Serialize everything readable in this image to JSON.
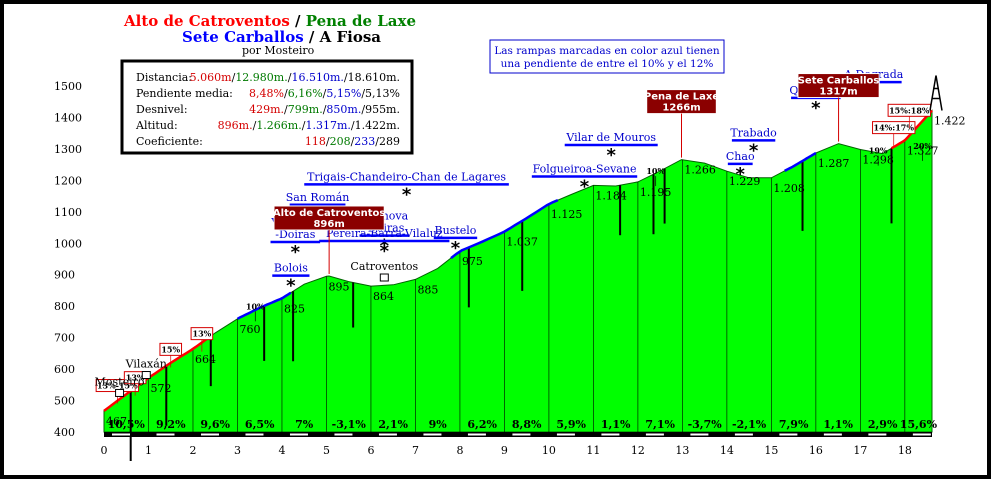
{
  "title": {
    "line1_red": "Alto de Catroventos",
    "sep1": " / ",
    "line1_green": "Pena de Laxe",
    "line2_blue": "Sete Carballos",
    "sep2": " / ",
    "line2_black": "A Fiosa",
    "author": "por Mosteiro"
  },
  "stats": {
    "rows": [
      {
        "label": "Distancia:",
        "values": [
          {
            "t": "5.060m",
            "c": "#d40000"
          },
          {
            "t": "/",
            "c": "#000"
          },
          {
            "t": "12.980m.",
            "c": "#007a00"
          },
          {
            "t": "/",
            "c": "#000"
          },
          {
            "t": "16.510m.",
            "c": "#0000cc"
          },
          {
            "t": "/18.610m.",
            "c": "#000"
          }
        ]
      },
      {
        "label": "Pendiente media:",
        "values": [
          {
            "t": "8,48%",
            "c": "#d40000"
          },
          {
            "t": "/",
            "c": "#000"
          },
          {
            "t": "6,16%",
            "c": "#007a00"
          },
          {
            "t": "/",
            "c": "#000"
          },
          {
            "t": "5,15%",
            "c": "#0000cc"
          },
          {
            "t": "/5,13%",
            "c": "#000"
          }
        ]
      },
      {
        "label": "Desnivel:",
        "values": [
          {
            "t": "429m.",
            "c": "#d40000"
          },
          {
            "t": "/",
            "c": "#000"
          },
          {
            "t": "799m.",
            "c": "#007a00"
          },
          {
            "t": "/",
            "c": "#000"
          },
          {
            "t": "850m.",
            "c": "#0000cc"
          },
          {
            "t": "/955m.",
            "c": "#000"
          }
        ]
      },
      {
        "label": "Altitud:",
        "values": [
          {
            "t": "896m.",
            "c": "#d40000"
          },
          {
            "t": "/",
            "c": "#000"
          },
          {
            "t": "1.266m.",
            "c": "#007a00"
          },
          {
            "t": "/",
            "c": "#000"
          },
          {
            "t": "1.317m.",
            "c": "#0000cc"
          },
          {
            "t": "/1.422m.",
            "c": "#000"
          }
        ]
      },
      {
        "label": "Coeficiente:",
        "values": [
          {
            "t": "118",
            "c": "#d40000"
          },
          {
            "t": "/",
            "c": "#000"
          },
          {
            "t": "208",
            "c": "#007a00"
          },
          {
            "t": "/",
            "c": "#000"
          },
          {
            "t": "233",
            "c": "#0000cc"
          },
          {
            "t": "/289",
            "c": "#000"
          }
        ]
      }
    ]
  },
  "note": {
    "line1": "Las rampas marcadas en color azul tienen",
    "line2": "una pendiente de entre el 10% y el 12%"
  },
  "colors": {
    "fill": "#00ff00",
    "red_ramp": "#ff0000",
    "blue_ramp": "#0000ff",
    "label_blue": "#0000cc",
    "summit_box": "#8b0000"
  },
  "chart_data": {
    "type": "area",
    "xlim": [
      0,
      18.61
    ],
    "ylim": [
      400,
      1500
    ],
    "y_ticks": [
      400,
      500,
      600,
      700,
      800,
      900,
      1000,
      1100,
      1200,
      1300,
      1400,
      1500
    ],
    "x_ticks": [
      "0",
      "1",
      "2",
      "3",
      "4",
      "5",
      "6",
      "7",
      "8",
      "9",
      "10",
      "11",
      "12",
      "13",
      "14",
      "15",
      "16",
      "17",
      "18"
    ],
    "profile": [
      [
        0,
        467
      ],
      [
        0.5,
        520
      ],
      [
        1,
        572
      ],
      [
        1.5,
        620
      ],
      [
        2,
        664
      ],
      [
        2.5,
        715
      ],
      [
        3,
        760
      ],
      [
        3.5,
        795
      ],
      [
        4,
        825
      ],
      [
        4.5,
        870
      ],
      [
        5,
        895
      ],
      [
        5.06,
        896
      ],
      [
        5.5,
        878
      ],
      [
        6,
        864
      ],
      [
        6.5,
        868
      ],
      [
        7,
        885
      ],
      [
        7.5,
        920
      ],
      [
        8,
        975
      ],
      [
        8.5,
        1005
      ],
      [
        9,
        1037
      ],
      [
        9.5,
        1080
      ],
      [
        10,
        1125
      ],
      [
        10.5,
        1155
      ],
      [
        11,
        1184
      ],
      [
        11.5,
        1182
      ],
      [
        12,
        1195
      ],
      [
        12.5,
        1230
      ],
      [
        12.98,
        1266
      ],
      [
        13.5,
        1255
      ],
      [
        14,
        1229
      ],
      [
        14.5,
        1208
      ],
      [
        15,
        1208
      ],
      [
        15.5,
        1245
      ],
      [
        16,
        1287
      ],
      [
        16.51,
        1317
      ],
      [
        17,
        1298
      ],
      [
        17.5,
        1285
      ],
      [
        18,
        1327
      ],
      [
        18.61,
        1422
      ]
    ],
    "point_labels": [
      {
        "x": 0,
        "y": 467,
        "label": "467"
      },
      {
        "x": 1,
        "y": 572,
        "label": "572"
      },
      {
        "x": 2,
        "y": 664,
        "label": "664"
      },
      {
        "x": 3,
        "y": 760,
        "label": "760"
      },
      {
        "x": 4,
        "y": 825,
        "label": "825"
      },
      {
        "x": 5,
        "y": 895,
        "label": "895"
      },
      {
        "x": 6,
        "y": 864,
        "label": "864"
      },
      {
        "x": 7,
        "y": 885,
        "label": "885"
      },
      {
        "x": 8,
        "y": 975,
        "label": "975"
      },
      {
        "x": 9,
        "y": 1037,
        "label": "1.037"
      },
      {
        "x": 10,
        "y": 1125,
        "label": "1.125"
      },
      {
        "x": 11,
        "y": 1184,
        "label": "1.184"
      },
      {
        "x": 12,
        "y": 1195,
        "label": "1.195"
      },
      {
        "x": 13,
        "y": 1266,
        "label": "1.266"
      },
      {
        "x": 14,
        "y": 1229,
        "label": "1.229"
      },
      {
        "x": 15,
        "y": 1208,
        "label": "1.208"
      },
      {
        "x": 16,
        "y": 1287,
        "label": "1.287"
      },
      {
        "x": 17,
        "y": 1298,
        "label": "1.298"
      },
      {
        "x": 18,
        "y": 1327,
        "label": "1.327"
      },
      {
        "x": 18.61,
        "y": 1422,
        "label": "1.422"
      }
    ],
    "segment_gradients": [
      "10,5%",
      "9,2%",
      "9,6%",
      "6,5%",
      "7%",
      "-3,1%",
      "2,1%",
      "9%",
      "6,2%",
      "8,8%",
      "5,9%",
      "1,1%",
      "7,1%",
      "-3,7%",
      "-2,1%",
      "7,9%",
      "1,1%",
      "2,9%",
      "15,6%"
    ],
    "red_ramps": [
      [
        0,
        2.3
      ],
      [
        17.7,
        18.61
      ]
    ],
    "blue_ramps": [
      [
        3,
        4.2
      ],
      [
        7.8,
        10.2
      ],
      [
        15.3,
        16
      ]
    ],
    "slope_callouts": [
      {
        "x": 0.3,
        "y": 535,
        "label": "13%-15%"
      },
      {
        "x": 0.7,
        "y": 560,
        "label": "13%"
      },
      {
        "x": 1.5,
        "y": 650,
        "label": "15%"
      },
      {
        "x": 2.2,
        "y": 700,
        "label": "13%"
      },
      {
        "x": 3.4,
        "y": 790,
        "label": "10%"
      },
      {
        "x": 12.4,
        "y": 1220,
        "label": "10%"
      },
      {
        "x": 17.4,
        "y": 1285,
        "label": "19%"
      },
      {
        "x": 17.75,
        "y": 1355,
        "label": "14%:17%"
      },
      {
        "x": 18.1,
        "y": 1410,
        "label": "15%:18%"
      },
      {
        "x": 18.4,
        "y": 1300,
        "label": "20%"
      }
    ],
    "places": [
      {
        "x": 0.35,
        "y": 548,
        "label": "Mosteiro"
      },
      {
        "x": 0.95,
        "y": 605,
        "label": "Vilaxán"
      },
      {
        "x": 6.3,
        "y": 915,
        "label": "Catroventos"
      }
    ],
    "climbs": [
      {
        "x": 4.2,
        "y": 910,
        "label": "Bolois"
      },
      {
        "x": 4.3,
        "y": 1055,
        "label": "Vilanova -Doiras"
      },
      {
        "x": 4.8,
        "y": 1135,
        "label": "San Román"
      },
      {
        "x": 6.3,
        "y": 1075,
        "label": "Vilanova -Doiras"
      },
      {
        "x": 6.3,
        "y": 1020,
        "label": "Pereira-Barra-Vilaluz"
      },
      {
        "x": 6.8,
        "y": 1200,
        "label": "Trigais-Chandeiro-Chan de Lagares"
      },
      {
        "x": 7.9,
        "y": 1030,
        "label": "Bustelo"
      },
      {
        "x": 10.8,
        "y": 1225,
        "label": "Folgueiroa-Sevane"
      },
      {
        "x": 11.4,
        "y": 1325,
        "label": "Vilar de Mouros"
      },
      {
        "x": 14.3,
        "y": 1265,
        "label": "Chao"
      },
      {
        "x": 14.6,
        "y": 1340,
        "label": "Trabado"
      },
      {
        "x": 16.0,
        "y": 1475,
        "label": "Quindous"
      },
      {
        "x": 17.3,
        "y": 1525,
        "label": "A Degrada"
      }
    ],
    "summits": [
      {
        "x": 5.06,
        "y": 896,
        "name": "Alto de Catroventos",
        "alt": "896m"
      },
      {
        "x": 12.98,
        "y": 1266,
        "name": "Pena de Laxe",
        "alt": "1266m"
      },
      {
        "x": 16.51,
        "y": 1317,
        "name": "Sete Carballos",
        "alt": "1317m"
      }
    ]
  }
}
